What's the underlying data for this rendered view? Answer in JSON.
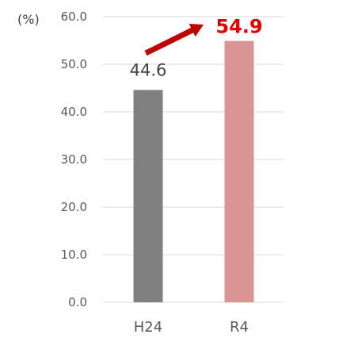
{
  "chart_data": {
    "type": "bar",
    "unit_label": "(%)",
    "categories": [
      "H24",
      "R4"
    ],
    "values": [
      44.6,
      54.9
    ],
    "data_labels": [
      "44.6",
      "54.9"
    ],
    "y_ticks": [
      "0.0",
      "10.0",
      "20.0",
      "30.0",
      "40.0",
      "50.0",
      "60.0"
    ],
    "ylim": [
      0,
      60
    ],
    "grid": true,
    "legend": "none",
    "bar_colors": [
      "#808080",
      "#d99594"
    ],
    "label_colors": [
      "#404040",
      "#e00000"
    ],
    "gridline_color": "#d9d9d9",
    "arrow": {
      "from": "H24",
      "to": "R4",
      "color": "#c00000"
    }
  }
}
